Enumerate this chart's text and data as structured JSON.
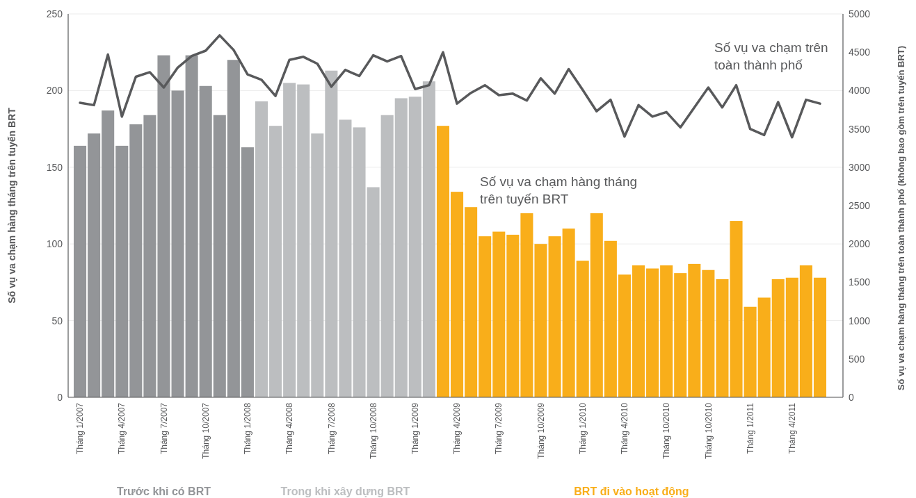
{
  "chart_data": {
    "type": "bar",
    "categories": [
      "Tháng 1/2007",
      null,
      null,
      "Tháng 4/2007",
      null,
      null,
      "Tháng 7/2007",
      null,
      null,
      "Tháng 10/2007",
      null,
      null,
      "Tháng 1/2008",
      null,
      null,
      "Tháng 4/2008",
      null,
      null,
      "Tháng 7/2008",
      null,
      null,
      "Tháng 10/2008",
      null,
      null,
      "Tháng 1/2009",
      null,
      null,
      "Tháng 4/2009",
      null,
      null,
      "Tháng 7/2009",
      null,
      null,
      "Tháng 10/2009",
      null,
      null,
      "Tháng 1/2010",
      null,
      null,
      "Tháng 4/2010",
      null,
      null,
      "Tháng 10/2010",
      null,
      null,
      "Tháng 10/2010",
      null,
      null,
      "Tháng 1/2011",
      null,
      null,
      "Tháng 4/2011",
      null,
      null
    ],
    "series": [
      {
        "name": "Trước khi có BRT",
        "color": "#939598",
        "values": [
          164,
          172,
          187,
          164,
          178,
          184,
          223,
          200,
          223,
          203,
          184,
          220,
          163,
          null,
          null,
          null,
          null,
          null,
          null,
          null,
          null,
          null,
          null,
          null,
          null,
          null,
          null,
          null,
          null,
          null,
          null,
          null,
          null,
          null,
          null,
          null,
          null,
          null,
          null,
          null,
          null,
          null,
          null,
          null,
          null,
          null,
          null,
          null,
          null,
          null,
          null,
          null,
          null,
          null
        ]
      },
      {
        "name": "Trong khi xây dựng BRT",
        "color": "#bcbec0",
        "values": [
          null,
          null,
          null,
          null,
          null,
          null,
          null,
          null,
          null,
          null,
          null,
          null,
          null,
          193,
          177,
          205,
          204,
          172,
          213,
          181,
          176,
          137,
          184,
          195,
          196,
          206,
          null,
          null,
          null,
          null,
          null,
          null,
          null,
          null,
          null,
          null,
          null,
          null,
          null,
          null,
          null,
          null,
          null,
          null,
          null,
          null,
          null,
          null,
          null,
          null,
          null,
          null,
          null,
          null
        ]
      },
      {
        "name": "BRT đi vào hoạt động",
        "color": "#f9ae1a",
        "values": [
          null,
          null,
          null,
          null,
          null,
          null,
          null,
          null,
          null,
          null,
          null,
          null,
          null,
          null,
          null,
          null,
          null,
          null,
          null,
          null,
          null,
          null,
          null,
          null,
          null,
          null,
          177,
          134,
          124,
          105,
          108,
          106,
          120,
          100,
          105,
          110,
          89,
          120,
          102,
          80,
          86,
          84,
          86,
          81,
          87,
          83,
          77,
          115,
          59,
          65,
          77,
          78,
          86,
          78
        ]
      },
      {
        "type": "line",
        "axis": "y2",
        "color": "#58595b",
        "values": [
          3840,
          3810,
          4470,
          3660,
          4180,
          4240,
          4040,
          4300,
          4450,
          4520,
          4720,
          4530,
          4210,
          4140,
          3930,
          4400,
          4440,
          4350,
          4050,
          4270,
          4190,
          4460,
          4380,
          4450,
          4020,
          4070,
          4500,
          3830,
          3970,
          4070,
          3940,
          3960,
          3870,
          4160,
          3960,
          4280,
          4010,
          3730,
          3880,
          3400,
          3810,
          3660,
          3720,
          3520,
          3780,
          4040,
          3780,
          4070,
          3500,
          3420,
          3850,
          3390,
          3880,
          3830
        ]
      }
    ],
    "ylabel": "Số vụ va chạm hàng tháng trên tuyến BRT",
    "y2label": "Số vụ va chạm hàng tháng trên toàn thành phố (không bao gồm trên tuyến BRT)",
    "ylim": [
      0,
      250
    ],
    "yticks": [
      0,
      50,
      100,
      150,
      200,
      250
    ],
    "y2lim": [
      0,
      5000
    ],
    "y2ticks": [
      0,
      500,
      1000,
      1500,
      2000,
      2500,
      3000,
      3500,
      4000,
      4500,
      5000
    ],
    "grid": "y",
    "legend": "bottom",
    "annotations": [
      "Số vụ va chạm trên toàn thành phố",
      "Số vụ va chạm hàng tháng trên tuyến BRT"
    ]
  }
}
